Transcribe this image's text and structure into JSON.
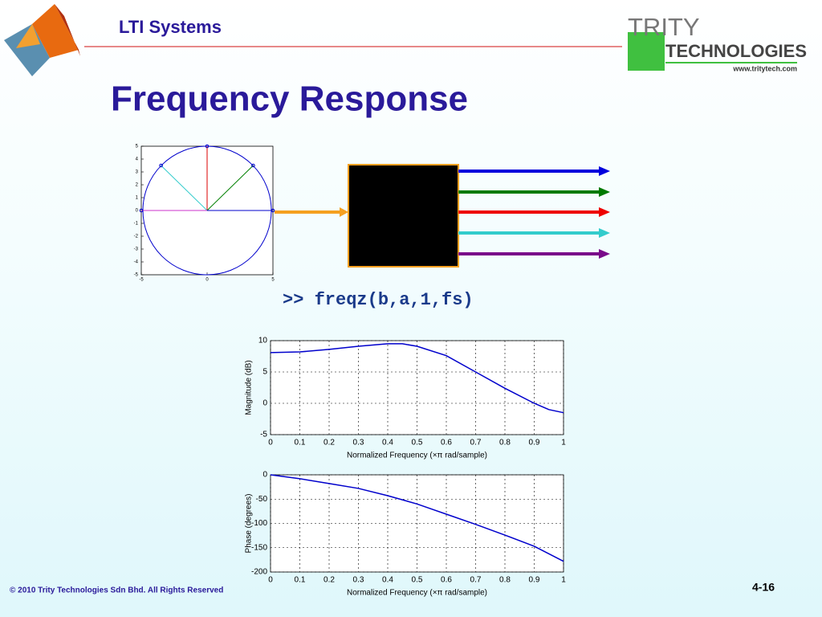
{
  "slide": {
    "section": "LTI Systems",
    "title": "Frequency Response",
    "command": ">> freqz(b,a,1,fs)",
    "logo": {
      "name": "TRITY",
      "sub": "TECHNOLOGIES",
      "url": "www.tritytech.com"
    },
    "footer": "© 2010 Trity Technologies Sdn Bhd. All Rights Reserved",
    "page": "4-16"
  },
  "chart_data": [
    {
      "type": "scatter",
      "x": [
        0,
        -3.5,
        3.5,
        -5,
        5
      ],
      "values": [
        5,
        3.5,
        3.5,
        0,
        0
      ],
      "colors": [
        "#dd0000",
        "#33cccc",
        "#008000",
        "#cc33cc",
        "#0000cc"
      ],
      "xlim": [
        -5,
        5
      ],
      "ylim": [
        -5,
        5
      ],
      "xticks": [
        -5,
        0,
        5
      ],
      "yticks": [
        -5,
        -4,
        -3,
        -2,
        -1,
        0,
        1,
        2,
        3,
        4,
        5
      ]
    },
    {
      "type": "line",
      "x": [
        0,
        0.1,
        0.2,
        0.3,
        0.4,
        0.45,
        0.5,
        0.6,
        0.7,
        0.8,
        0.9,
        0.95,
        1.0
      ],
      "values": [
        8.1,
        8.2,
        8.6,
        9.1,
        9.5,
        9.5,
        9.1,
        7.6,
        5.0,
        2.4,
        0,
        -1.0,
        -1.5
      ],
      "color": "#0000cc",
      "xlim": [
        0,
        1
      ],
      "ylim": [
        -5,
        10
      ],
      "xticks": [
        0,
        0.1,
        0.2,
        0.3,
        0.4,
        0.5,
        0.6,
        0.7,
        0.8,
        0.9,
        1
      ],
      "yticks": [
        -5,
        0,
        5,
        10
      ],
      "xlabel": "Normalized Frequency  (×π rad/sample)",
      "ylabel": "Magnitude (dB)",
      "grid": true
    },
    {
      "type": "line",
      "x": [
        0,
        0.1,
        0.2,
        0.3,
        0.4,
        0.5,
        0.6,
        0.7,
        0.8,
        0.9,
        1.0
      ],
      "values": [
        0,
        -8,
        -18,
        -28,
        -43,
        -60,
        -81,
        -102,
        -124,
        -147,
        -178
      ],
      "color": "#0000cc",
      "xlim": [
        0,
        1
      ],
      "ylim": [
        -200,
        0
      ],
      "xticks": [
        0,
        0.1,
        0.2,
        0.3,
        0.4,
        0.5,
        0.6,
        0.7,
        0.8,
        0.9,
        1
      ],
      "yticks": [
        -200,
        -150,
        -100,
        -50,
        0
      ],
      "xlabel": "Normalized Frequency  (×π rad/sample)",
      "ylabel": "Phase (degrees)",
      "grid": true
    }
  ]
}
